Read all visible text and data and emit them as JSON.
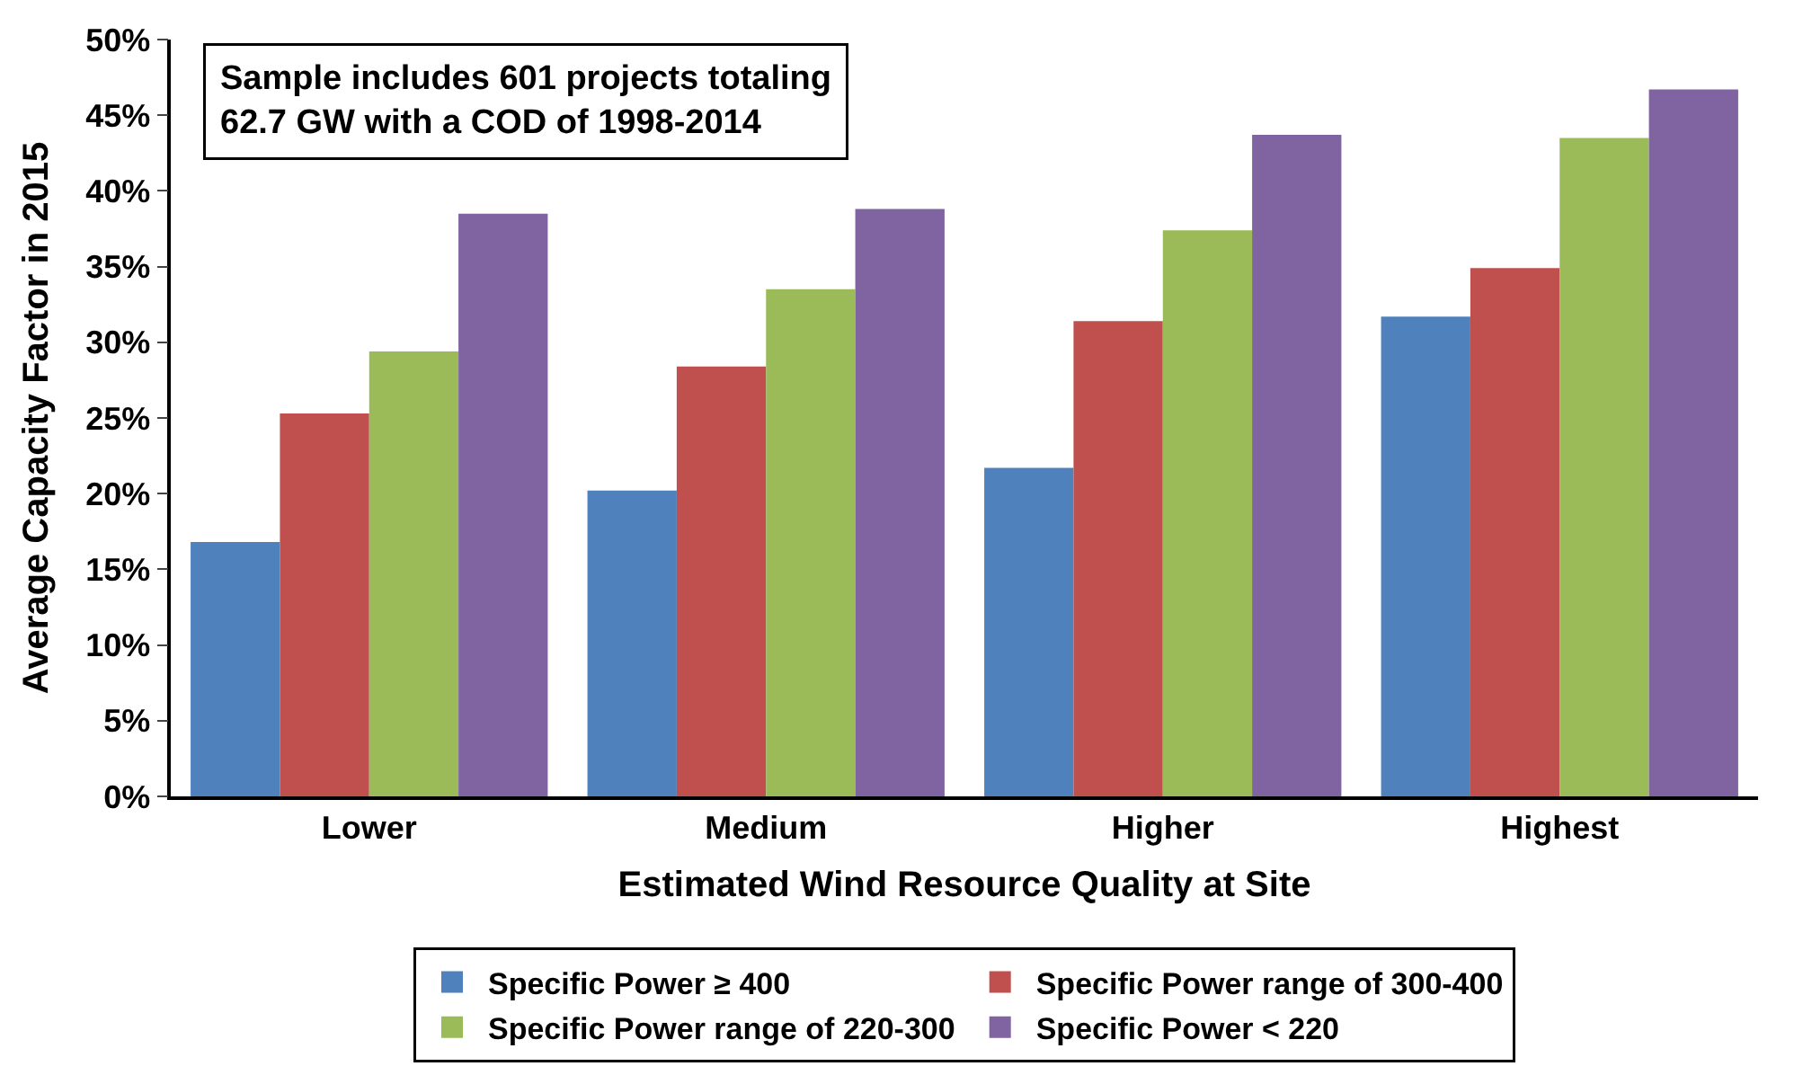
{
  "chart_data": {
    "type": "bar",
    "categories": [
      "Lower",
      "Medium",
      "Higher",
      "Highest"
    ],
    "xlabel": "Estimated Wind Resource Quality at Site",
    "ylabel": "Average Capacity Factor in 2015",
    "annotations": [
      "Sample includes 601 projects totaling\n62.7 GW with a COD of 1998-2014"
    ],
    "series": [
      {
        "name": "Specific Power ≥ 400",
        "color": "#4f81bd",
        "values": [
          16.8,
          20.2,
          21.7,
          31.7
        ]
      },
      {
        "name": "Specific Power range of 300-400",
        "color": "#c0504d",
        "values": [
          25.3,
          28.4,
          31.4,
          34.9
        ]
      },
      {
        "name": "Specific Power range of 220-300",
        "color": "#9bbb59",
        "values": [
          29.4,
          33.5,
          37.4,
          43.5
        ]
      },
      {
        "name": "Specific Power < 220",
        "color": "#8064a2",
        "values": [
          38.5,
          38.8,
          43.7,
          46.7
        ]
      }
    ],
    "ylim": [
      0,
      50
    ],
    "yticks": [
      {
        "value": 0,
        "label": "0%"
      },
      {
        "value": 5,
        "label": "5%"
      },
      {
        "value": 10,
        "label": "10%"
      },
      {
        "value": 15,
        "label": "15%"
      },
      {
        "value": 20,
        "label": "20%"
      },
      {
        "value": 25,
        "label": "25%"
      },
      {
        "value": 30,
        "label": "30%"
      },
      {
        "value": 35,
        "label": "35%"
      },
      {
        "value": 40,
        "label": "40%"
      },
      {
        "value": 45,
        "label": "45%"
      },
      {
        "value": 50,
        "label": "50%"
      }
    ],
    "legend": "bottom"
  }
}
